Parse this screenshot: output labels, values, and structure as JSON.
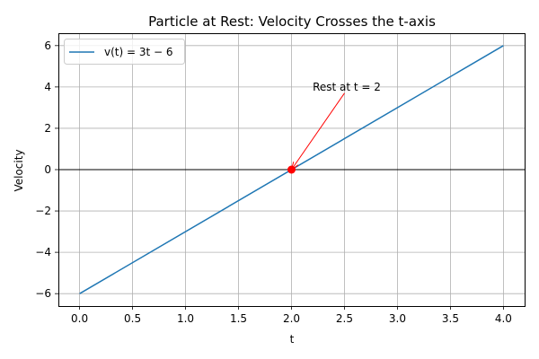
{
  "chart_data": {
    "type": "line",
    "title": "Particle at Rest: Velocity Crosses the t-axis",
    "xlabel": "t",
    "ylabel": "Velocity",
    "xlim": [
      -0.2,
      4.2
    ],
    "ylim": [
      -6.6,
      6.6
    ],
    "xticks": [
      0.0,
      0.5,
      1.0,
      1.5,
      2.0,
      2.5,
      3.0,
      3.5,
      4.0
    ],
    "xtick_labels": [
      "0.0",
      "0.5",
      "1.0",
      "1.5",
      "2.0",
      "2.5",
      "3.0",
      "3.5",
      "4.0"
    ],
    "yticks": [
      -6,
      -4,
      -2,
      0,
      2,
      4,
      6
    ],
    "ytick_labels": [
      "−6",
      "−4",
      "−2",
      "0",
      "2",
      "4",
      "6"
    ],
    "grid": true,
    "legend_position": "top-left",
    "reference_line_y": 0,
    "series": [
      {
        "name": "v(t) = 3t − 6",
        "color": "#1f77b4",
        "x": [
          0,
          4
        ],
        "y": [
          -6,
          6
        ]
      }
    ],
    "marker_point": {
      "x": 2,
      "y": 0,
      "color": "#ff0000"
    },
    "annotation": {
      "text": "Rest at t = 2",
      "text_x": 2.2,
      "text_y": 4,
      "arrow_from": [
        2.5,
        3.7
      ],
      "arrow_to": [
        2,
        0
      ],
      "color": "#ff0000"
    }
  }
}
